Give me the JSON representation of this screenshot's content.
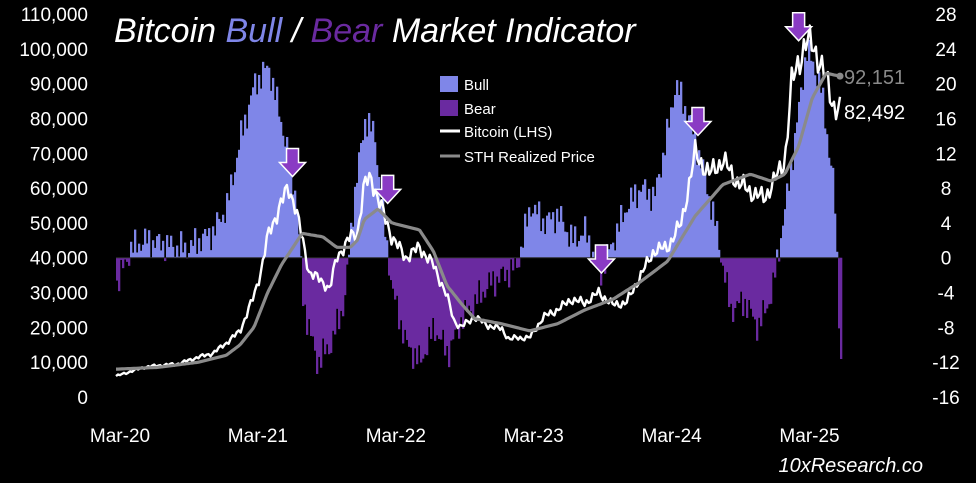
{
  "colors": {
    "background": "#000000",
    "bull": "#7f86e8",
    "bear": "#6a2aa0",
    "bitcoin": "#ffffff",
    "sth": "#8a8a8a",
    "arrow": "#8a3bc4"
  },
  "chart_data": {
    "type": "area",
    "title": {
      "part1": "Bitcoin ",
      "bull": "Bull",
      "sep": " / ",
      "bear": "Bear",
      "part2": " Market Indicator"
    },
    "source": "10xResearch.co",
    "x_ticks": [
      "Mar-20",
      "Mar-21",
      "Mar-22",
      "Mar-23",
      "Mar-24",
      "Mar-25"
    ],
    "y_left": {
      "min": 0,
      "max": 110000,
      "ticks": [
        "0",
        "10,000",
        "20,000",
        "30,000",
        "40,000",
        "50,000",
        "60,000",
        "70,000",
        "80,000",
        "90,000",
        "100,000",
        "110,000"
      ]
    },
    "y_right": {
      "min": -16,
      "max": 28,
      "ticks": [
        "-16",
        "-12",
        "-8",
        "-4",
        "0",
        "4",
        "8",
        "12",
        "16",
        "20",
        "24",
        "28"
      ]
    },
    "legend": {
      "position": "top-center",
      "items": [
        {
          "name": "Bull",
          "kind": "box",
          "color": "#7f86e8"
        },
        {
          "name": "Bear",
          "kind": "box",
          "color": "#6a2aa0"
        },
        {
          "name": "Bitcoin (LHS)",
          "kind": "line",
          "color": "#ffffff"
        },
        {
          "name": "STH Realized Price",
          "kind": "line",
          "color": "#8a8a8a"
        }
      ]
    },
    "annotations": {
      "sth_last": "92,151",
      "btc_last": "82,492",
      "arrow_dates": [
        2021.28,
        2021.97,
        2023.52,
        2024.22,
        2024.95
      ]
    },
    "indicator": {
      "axis": "right",
      "x": [
        2020.0,
        2020.1,
        2020.2,
        2020.35,
        2020.5,
        2020.7,
        2020.8,
        2020.9,
        2021.0,
        2021.1,
        2021.2,
        2021.3,
        2021.35,
        2021.45,
        2021.55,
        2021.65,
        2021.72,
        2021.8,
        2021.87,
        2021.92,
        2022.0,
        2022.1,
        2022.2,
        2022.3,
        2022.4,
        2022.5,
        2022.6,
        2022.7,
        2022.8,
        2022.9,
        2023.0,
        2023.1,
        2023.2,
        2023.3,
        2023.4,
        2023.5,
        2023.6,
        2023.7,
        2023.8,
        2023.9,
        2024.0,
        2024.05,
        2024.15,
        2024.25,
        2024.35,
        2024.45,
        2024.55,
        2024.65,
        2024.75,
        2024.85,
        2024.92,
        2025.0,
        2025.1,
        2025.2,
        2025.25
      ],
      "y": [
        -3,
        1,
        2,
        1.5,
        1,
        3,
        6,
        14,
        20,
        22,
        15,
        7,
        -5,
        -12,
        -10,
        -5,
        7,
        16,
        14,
        6,
        -4,
        -10,
        -12,
        -8,
        -11,
        -7,
        -5,
        -3,
        -2,
        -1,
        6,
        4,
        5,
        2,
        3,
        -2,
        2,
        6,
        8,
        7,
        15,
        20,
        16,
        10,
        3,
        -6,
        -5,
        -8,
        -4,
        6,
        14,
        24,
        20,
        8,
        -12
      ]
    },
    "series": [
      {
        "name": "Bitcoin (LHS)",
        "axis": "left",
        "x": [
          2020.0,
          2020.08,
          2020.2,
          2020.3,
          2020.45,
          2020.6,
          2020.7,
          2020.8,
          2020.9,
          2021.0,
          2021.05,
          2021.1,
          2021.2,
          2021.25,
          2021.3,
          2021.4,
          2021.5,
          2021.55,
          2021.6,
          2021.7,
          2021.75,
          2021.8,
          2021.85,
          2021.9,
          2022.0,
          2022.1,
          2022.2,
          2022.3,
          2022.4,
          2022.45,
          2022.5,
          2022.6,
          2022.7,
          2022.8,
          2022.85,
          2022.9,
          2023.0,
          2023.1,
          2023.2,
          2023.3,
          2023.4,
          2023.5,
          2023.6,
          2023.7,
          2023.8,
          2023.9,
          2024.0,
          2024.1,
          2024.2,
          2024.3,
          2024.4,
          2024.5,
          2024.6,
          2024.7,
          2024.8,
          2024.85,
          2024.9,
          2024.95,
          2025.0,
          2025.05,
          2025.1,
          2025.15,
          2025.2,
          2025.25
        ],
        "y": [
          6000,
          7000,
          8500,
          9000,
          9500,
          11500,
          12500,
          15500,
          19000,
          29000,
          36000,
          46000,
          56000,
          60000,
          55000,
          36000,
          33000,
          31000,
          40000,
          46000,
          47000,
          61000,
          63000,
          57000,
          46000,
          40000,
          43000,
          38000,
          29000,
          22000,
          20000,
          23000,
          20500,
          19500,
          16500,
          17000,
          17000,
          23000,
          25000,
          28000,
          27000,
          30000,
          26500,
          27000,
          34500,
          42000,
          43000,
          50000,
          70000,
          64000,
          68000,
          62000,
          59000,
          57000,
          64000,
          68000,
          90000,
          96000,
          102000,
          101000,
          97000,
          91000,
          84000,
          82492
        ]
      },
      {
        "name": "STH Realized Price",
        "axis": "left",
        "x": [
          2020.0,
          2020.3,
          2020.6,
          2020.8,
          2020.9,
          2021.0,
          2021.1,
          2021.2,
          2021.35,
          2021.5,
          2021.6,
          2021.7,
          2021.75,
          2021.8,
          2021.9,
          2022.0,
          2022.2,
          2022.3,
          2022.4,
          2022.5,
          2022.6,
          2022.8,
          2022.9,
          2023.0,
          2023.2,
          2023.4,
          2023.6,
          2023.8,
          2024.0,
          2024.2,
          2024.4,
          2024.6,
          2024.75,
          2024.85,
          2024.95,
          2025.05,
          2025.15,
          2025.25
        ],
        "y": [
          8000,
          8500,
          10000,
          12000,
          15000,
          20000,
          30000,
          38000,
          47000,
          46000,
          43000,
          43000,
          45000,
          51000,
          54000,
          50000,
          48000,
          42000,
          32000,
          27000,
          22500,
          21000,
          20000,
          19000,
          21000,
          25000,
          28000,
          33000,
          39000,
          52000,
          61000,
          64000,
          62000,
          64000,
          72000,
          86000,
          93000,
          92151
        ]
      }
    ]
  }
}
